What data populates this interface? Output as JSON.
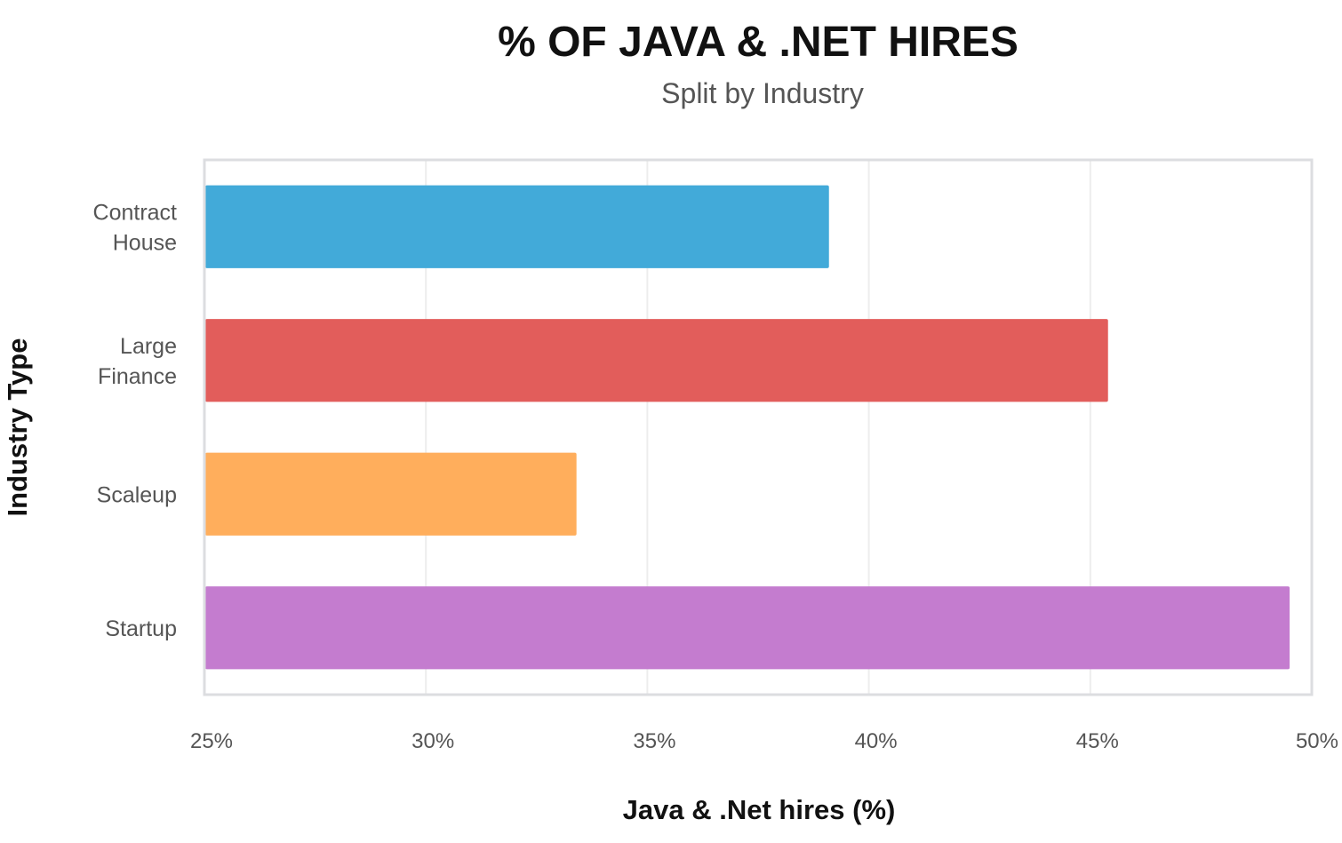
{
  "chart_data": {
    "type": "bar",
    "orientation": "horizontal",
    "title": "% OF JAVA & .NET HIRES",
    "subtitle": "Split by Industry",
    "xlabel": "Java & .Net hires (%)",
    "ylabel": "Industry Type",
    "xlim": [
      25,
      50
    ],
    "xticks": [
      25,
      30,
      35,
      40,
      45,
      50
    ],
    "xtick_labels": [
      "25%",
      "30%",
      "35%",
      "40%",
      "45%",
      "50%"
    ],
    "grid": "vertical",
    "legend": "none",
    "categories": [
      [
        "Contract",
        "House"
      ],
      [
        "Large",
        "Finance"
      ],
      [
        "Scaleup"
      ],
      [
        "Startup"
      ]
    ],
    "values": [
      39.1,
      45.4,
      33.4,
      49.5
    ],
    "colors": [
      "#42aad9",
      "#e25d5b",
      "#ffae5c",
      "#c47ccf"
    ]
  }
}
